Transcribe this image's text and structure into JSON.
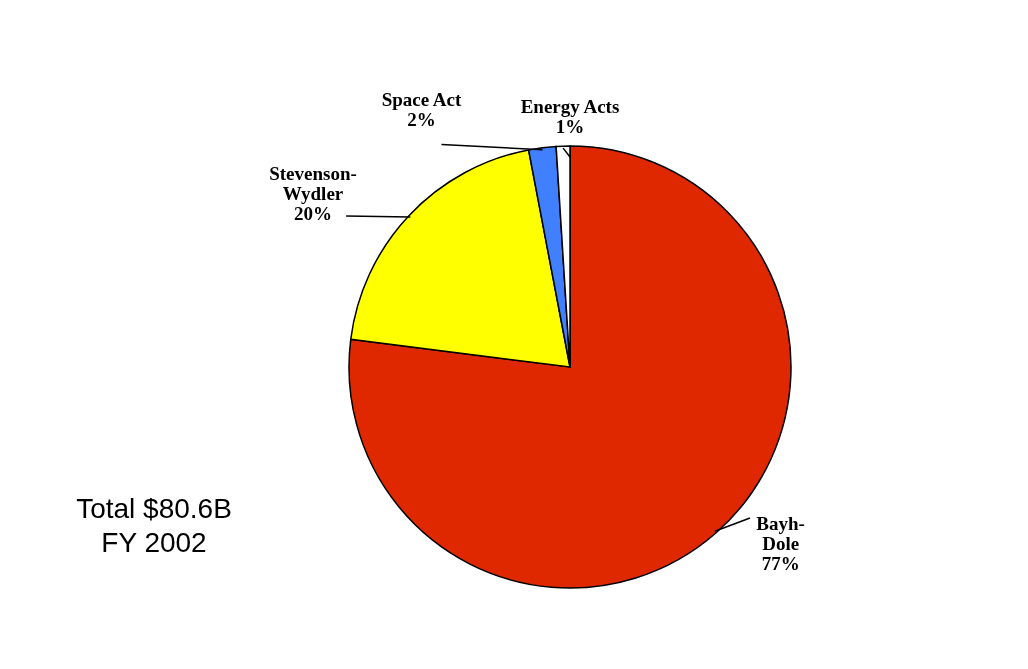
{
  "chart_data": {
    "type": "pie",
    "categories": [
      "Bayh-Dole",
      "Stevenson-Wydler",
      "Space Act",
      "Energy Acts"
    ],
    "values": [
      77,
      20,
      2,
      1
    ],
    "colors": [
      "#e02800",
      "#ffff00",
      "#4080ff",
      "#ffffff"
    ],
    "value_labels": [
      "77%",
      "20%",
      "2%",
      "1%"
    ],
    "annotations": [
      "Total $80.6B",
      "FY 2002"
    ]
  }
}
